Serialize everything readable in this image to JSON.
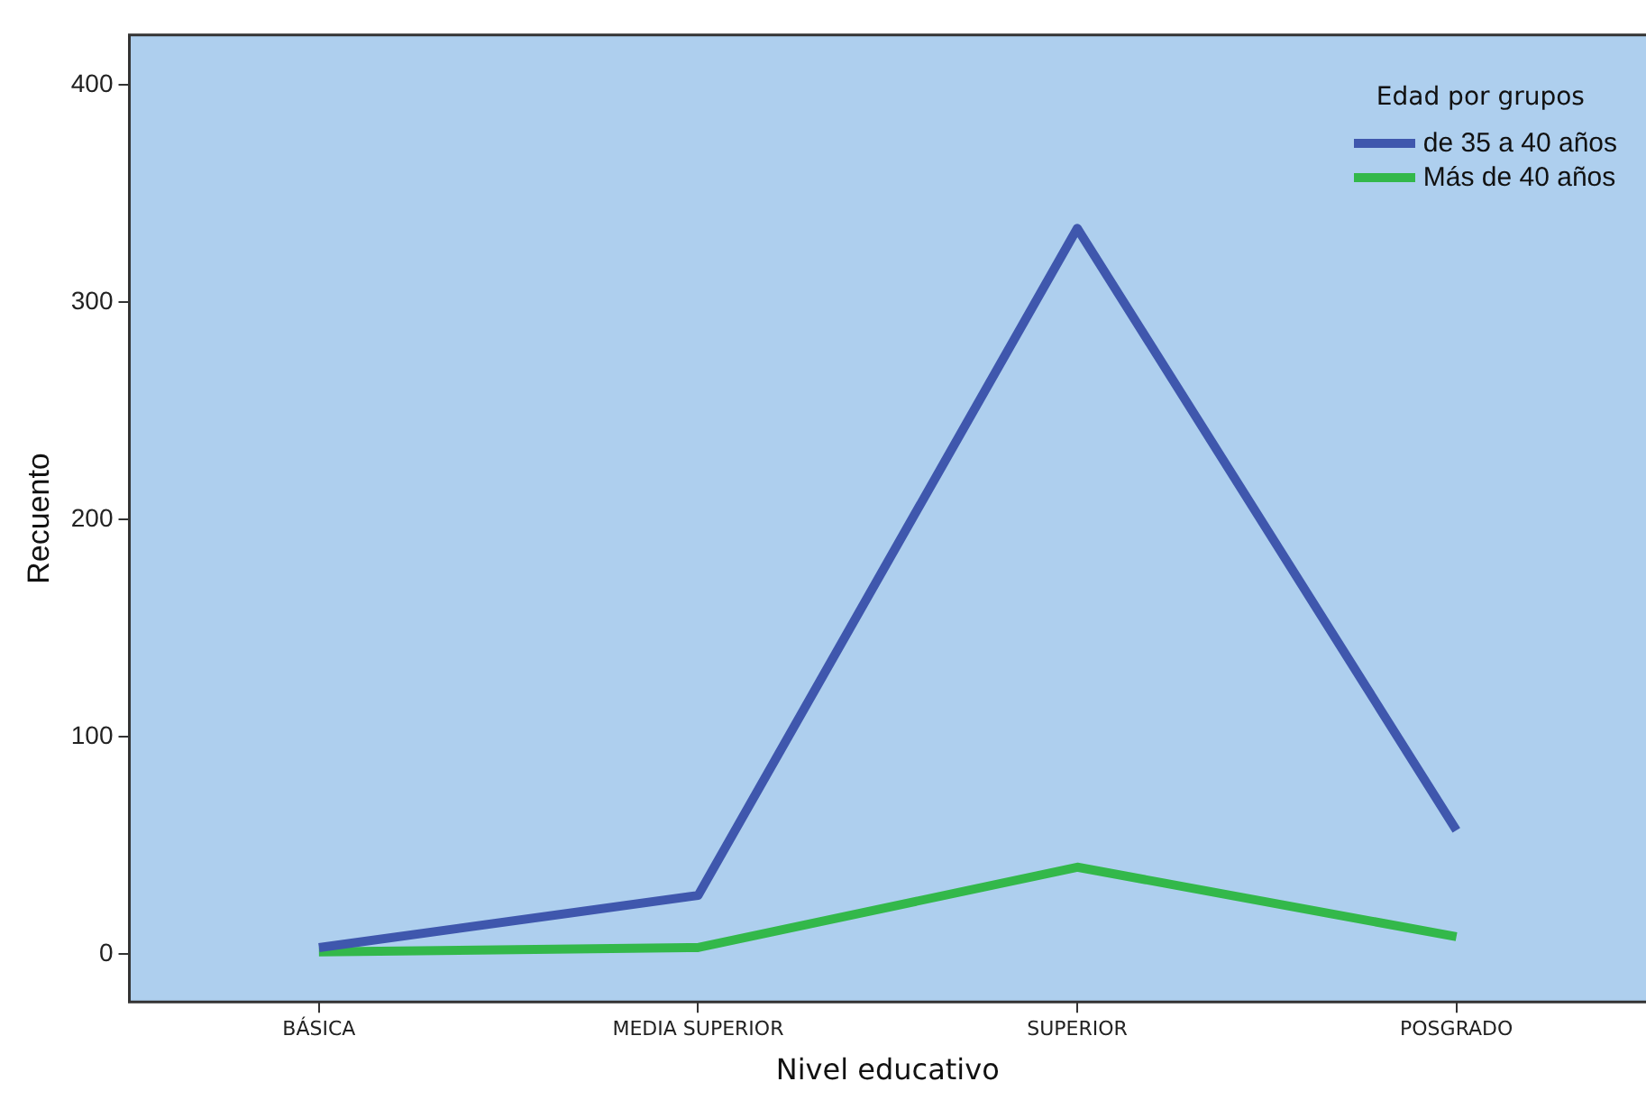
{
  "chart_data": {
    "type": "line",
    "xlabel": "Nivel educativo",
    "ylabel": "Recuento",
    "legend_title": "Edad por grupos",
    "categories": [
      "BÁSICA",
      "MEDIA SUPERIOR",
      "SUPERIOR",
      "POSGRADO"
    ],
    "series": [
      {
        "name": "de 35 a 40 años",
        "color": "#3f57ad",
        "values": [
          3,
          27,
          334,
          57
        ]
      },
      {
        "name": "Más de 40 años",
        "color": "#33b84a",
        "values": [
          1,
          3,
          40,
          8
        ]
      }
    ],
    "ylim": [
      -22,
      423
    ],
    "yticks": [
      0,
      100,
      200,
      300,
      400
    ],
    "grid": false,
    "legend": "top right",
    "marker": "none",
    "line_style": "solid"
  }
}
